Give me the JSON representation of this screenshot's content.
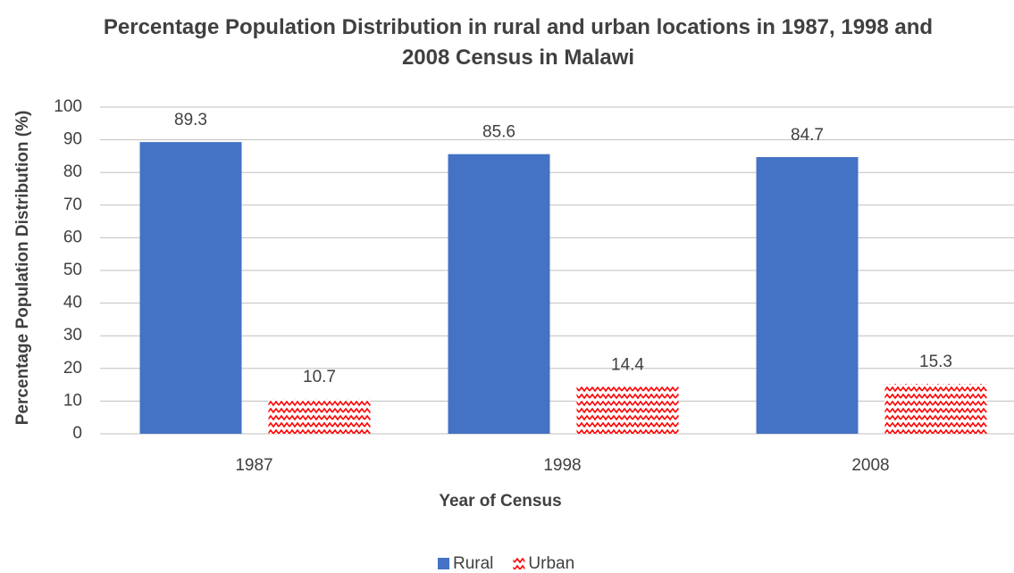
{
  "chart_data": {
    "type": "bar",
    "title": "Percentage Population Distribution in rural and urban locations in 1987, 1998 and 2008 Census in Malawi",
    "x_label": "Year of Census",
    "y_label": "Percentage Population Distribution (%)",
    "categories": [
      "1987",
      "1998",
      "2008"
    ],
    "series": [
      {
        "name": "Rural",
        "color": "#4472c4",
        "values": [
          89.3,
          85.6,
          84.7
        ]
      },
      {
        "name": "Urban",
        "color": "#ff0000",
        "pattern": "zigzag",
        "values": [
          10.7,
          14.4,
          15.3
        ]
      }
    ],
    "ylim": [
      0,
      100
    ],
    "yticks": [
      0,
      10,
      20,
      30,
      40,
      50,
      60,
      70,
      80,
      90,
      100
    ],
    "grid": true,
    "legend": "bottom"
  }
}
